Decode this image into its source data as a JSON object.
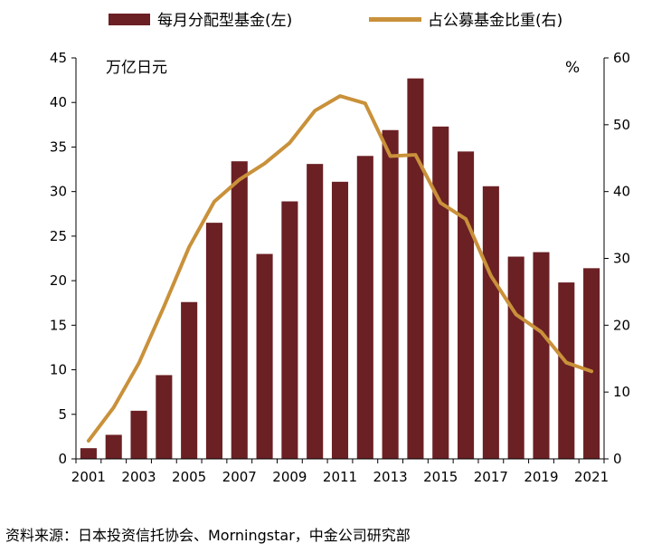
{
  "chart_data": {
    "type": "bar+line",
    "title": "",
    "categories": [
      "2001",
      "2002",
      "2003",
      "2004",
      "2005",
      "2006",
      "2007",
      "2008",
      "2009",
      "2010",
      "2011",
      "2012",
      "2013",
      "2014",
      "2015",
      "2016",
      "2017",
      "2018",
      "2019",
      "2020",
      "2021"
    ],
    "x_tick_labels": [
      "2001",
      "2003",
      "2005",
      "2007",
      "2009",
      "2011",
      "2013",
      "2015",
      "2017",
      "2019",
      "2021"
    ],
    "series": [
      {
        "name": "每月分配型基金(左)",
        "type": "bar",
        "axis": "left",
        "color": "#6b2024",
        "values": [
          1.2,
          2.7,
          5.4,
          9.4,
          17.6,
          26.5,
          33.4,
          23.0,
          28.9,
          33.1,
          31.1,
          34.0,
          36.9,
          42.7,
          37.3,
          34.5,
          30.6,
          22.7,
          23.2,
          19.8,
          21.4
        ]
      },
      {
        "name": "占公募基金比重(右)",
        "type": "line",
        "axis": "right",
        "color": "#c9913a",
        "values": [
          2.7,
          7.7,
          14.3,
          22.8,
          31.7,
          38.5,
          41.8,
          44.2,
          47.3,
          52.1,
          54.3,
          53.2,
          45.3,
          45.5,
          38.3,
          35.9,
          27.4,
          21.6,
          19.0,
          14.4,
          13.1
        ]
      }
    ],
    "y_left": {
      "label": "万亿日元",
      "ylim": [
        0,
        45
      ],
      "ticks": [
        "0",
        "5",
        "10",
        "15",
        "20",
        "25",
        "30",
        "35",
        "40",
        "45"
      ]
    },
    "y_right": {
      "label": "%",
      "ylim": [
        0,
        60
      ],
      "ticks": [
        "0",
        "10",
        "20",
        "30",
        "40",
        "50",
        "60"
      ]
    },
    "legend_placement": "top",
    "grid": false
  },
  "source_text": "资料来源：日本投资信托协会、Morningstar，中金公司研究部"
}
